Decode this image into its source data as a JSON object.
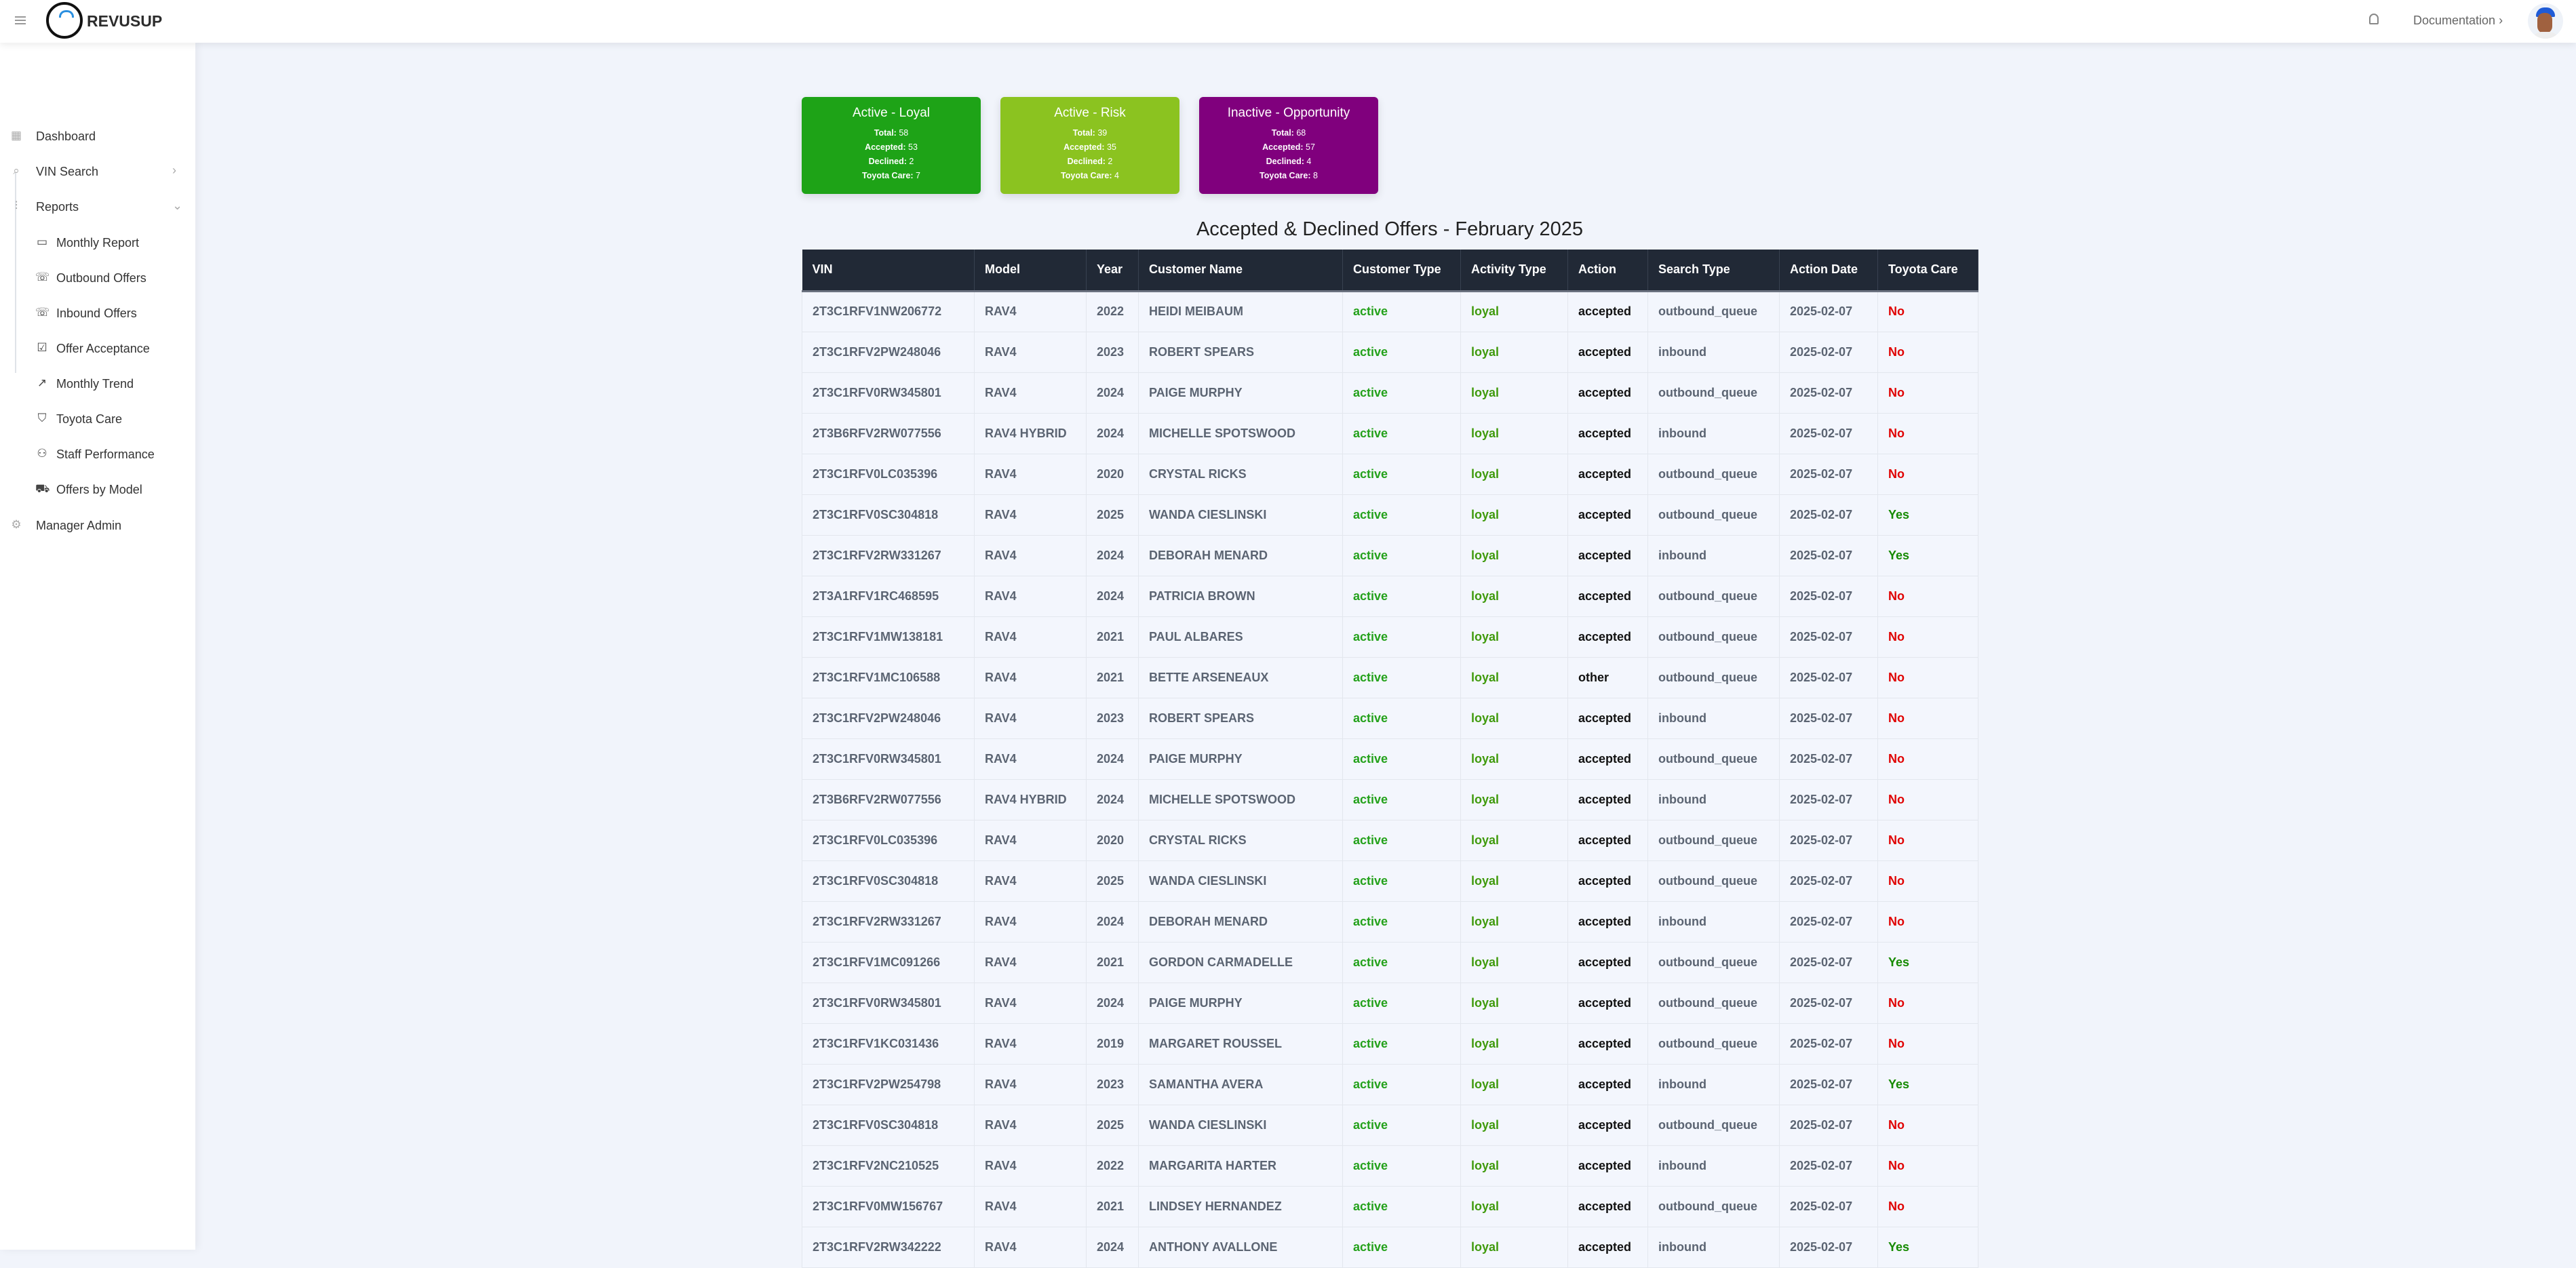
{
  "header": {
    "brand": "REVUSUP",
    "logo_text": "Revusup",
    "documentation": "Documentation ›"
  },
  "sidebar": {
    "items": [
      {
        "label": "Dashboard",
        "icon": "grid-icon"
      },
      {
        "label": "VIN Search",
        "icon": "search-icon"
      },
      {
        "label": "Reports",
        "icon": "bar-chart-icon"
      },
      {
        "label": "Monthly Report",
        "icon": "calendar-icon"
      },
      {
        "label": "Outbound Offers",
        "icon": "phone-outgoing-icon"
      },
      {
        "label": "Inbound Offers",
        "icon": "phone-incoming-icon"
      },
      {
        "label": "Offer Acceptance",
        "icon": "checkbox-icon"
      },
      {
        "label": "Monthly Trend",
        "icon": "trend-icon"
      },
      {
        "label": "Toyota Care",
        "icon": "shield-icon"
      },
      {
        "label": "Staff Performance",
        "icon": "users-icon"
      },
      {
        "label": "Offers by Model",
        "icon": "truck-icon"
      },
      {
        "label": "Manager Admin",
        "icon": "gear-icon"
      }
    ]
  },
  "cards": [
    {
      "title": "Active - Loyal",
      "color": "#1ea317",
      "total": "58",
      "accepted": "53",
      "declined": "2",
      "toyota_care": "7"
    },
    {
      "title": "Active - Risk",
      "color": "#8bc320",
      "total": "39",
      "accepted": "35",
      "declined": "2",
      "toyota_care": "4"
    },
    {
      "title": "Inactive - Opportunity",
      "color": "#80007d",
      "total": "68",
      "accepted": "57",
      "declined": "4",
      "toyota_care": "8"
    }
  ],
  "card_labels": {
    "total": "Total:",
    "accepted": "Accepted:",
    "declined": "Declined:",
    "toyota_care": "Toyota Care:"
  },
  "table": {
    "title": "Accepted & Declined Offers - February 2025",
    "columns": [
      "VIN",
      "Model",
      "Year",
      "Customer Name",
      "Customer Type",
      "Activity Type",
      "Action",
      "Search Type",
      "Action Date",
      "Toyota Care"
    ],
    "rows": [
      [
        "2T3C1RFV1NW206772",
        "RAV4",
        "2022",
        "HEIDI MEIBAUM",
        "active",
        "loyal",
        "accepted",
        "outbound_queue",
        "2025-02-07",
        "No"
      ],
      [
        "2T3C1RFV2PW248046",
        "RAV4",
        "2023",
        "ROBERT SPEARS",
        "active",
        "loyal",
        "accepted",
        "inbound",
        "2025-02-07",
        "No"
      ],
      [
        "2T3C1RFV0RW345801",
        "RAV4",
        "2024",
        "PAIGE MURPHY",
        "active",
        "loyal",
        "accepted",
        "outbound_queue",
        "2025-02-07",
        "No"
      ],
      [
        "2T3B6RFV2RW077556",
        "RAV4 HYBRID",
        "2024",
        "MICHELLE SPOTSWOOD",
        "active",
        "loyal",
        "accepted",
        "inbound",
        "2025-02-07",
        "No"
      ],
      [
        "2T3C1RFV0LC035396",
        "RAV4",
        "2020",
        "CRYSTAL RICKS",
        "active",
        "loyal",
        "accepted",
        "outbound_queue",
        "2025-02-07",
        "No"
      ],
      [
        "2T3C1RFV0SC304818",
        "RAV4",
        "2025",
        "WANDA CIESLINSKI",
        "active",
        "loyal",
        "accepted",
        "outbound_queue",
        "2025-02-07",
        "Yes"
      ],
      [
        "2T3C1RFV2RW331267",
        "RAV4",
        "2024",
        "DEBORAH MENARD",
        "active",
        "loyal",
        "accepted",
        "inbound",
        "2025-02-07",
        "Yes"
      ],
      [
        "2T3A1RFV1RC468595",
        "RAV4",
        "2024",
        "PATRICIA BROWN",
        "active",
        "loyal",
        "accepted",
        "outbound_queue",
        "2025-02-07",
        "No"
      ],
      [
        "2T3C1RFV1MW138181",
        "RAV4",
        "2021",
        "PAUL ALBARES",
        "active",
        "loyal",
        "accepted",
        "outbound_queue",
        "2025-02-07",
        "No"
      ],
      [
        "2T3C1RFV1MC106588",
        "RAV4",
        "2021",
        "BETTE ARSENEAUX",
        "active",
        "loyal",
        "other",
        "outbound_queue",
        "2025-02-07",
        "No"
      ],
      [
        "2T3C1RFV2PW248046",
        "RAV4",
        "2023",
        "ROBERT SPEARS",
        "active",
        "loyal",
        "accepted",
        "inbound",
        "2025-02-07",
        "No"
      ],
      [
        "2T3C1RFV0RW345801",
        "RAV4",
        "2024",
        "PAIGE MURPHY",
        "active",
        "loyal",
        "accepted",
        "outbound_queue",
        "2025-02-07",
        "No"
      ],
      [
        "2T3B6RFV2RW077556",
        "RAV4 HYBRID",
        "2024",
        "MICHELLE SPOTSWOOD",
        "active",
        "loyal",
        "accepted",
        "inbound",
        "2025-02-07",
        "No"
      ],
      [
        "2T3C1RFV0LC035396",
        "RAV4",
        "2020",
        "CRYSTAL RICKS",
        "active",
        "loyal",
        "accepted",
        "outbound_queue",
        "2025-02-07",
        "No"
      ],
      [
        "2T3C1RFV0SC304818",
        "RAV4",
        "2025",
        "WANDA CIESLINSKI",
        "active",
        "loyal",
        "accepted",
        "outbound_queue",
        "2025-02-07",
        "No"
      ],
      [
        "2T3C1RFV2RW331267",
        "RAV4",
        "2024",
        "DEBORAH MENARD",
        "active",
        "loyal",
        "accepted",
        "inbound",
        "2025-02-07",
        "No"
      ],
      [
        "2T3C1RFV1MC091266",
        "RAV4",
        "2021",
        "GORDON CARMADELLE",
        "active",
        "loyal",
        "accepted",
        "outbound_queue",
        "2025-02-07",
        "Yes"
      ],
      [
        "2T3C1RFV0RW345801",
        "RAV4",
        "2024",
        "PAIGE MURPHY",
        "active",
        "loyal",
        "accepted",
        "outbound_queue",
        "2025-02-07",
        "No"
      ],
      [
        "2T3C1RFV1KC031436",
        "RAV4",
        "2019",
        "MARGARET ROUSSEL",
        "active",
        "loyal",
        "accepted",
        "outbound_queue",
        "2025-02-07",
        "No"
      ],
      [
        "2T3C1RFV2PW254798",
        "RAV4",
        "2023",
        "SAMANTHA AVERA",
        "active",
        "loyal",
        "accepted",
        "inbound",
        "2025-02-07",
        "Yes"
      ],
      [
        "2T3C1RFV0SC304818",
        "RAV4",
        "2025",
        "WANDA CIESLINSKI",
        "active",
        "loyal",
        "accepted",
        "outbound_queue",
        "2025-02-07",
        "No"
      ],
      [
        "2T3C1RFV2NC210525",
        "RAV4",
        "2022",
        "MARGARITA HARTER",
        "active",
        "loyal",
        "accepted",
        "inbound",
        "2025-02-07",
        "No"
      ],
      [
        "2T3C1RFV0MW156767",
        "RAV4",
        "2021",
        "LINDSEY HERNANDEZ",
        "active",
        "loyal",
        "accepted",
        "outbound_queue",
        "2025-02-07",
        "No"
      ],
      [
        "2T3C1RFV2RW342222",
        "RAV4",
        "2024",
        "ANTHONY AVALLONE",
        "active",
        "loyal",
        "accepted",
        "inbound",
        "2025-02-07",
        "Yes"
      ]
    ]
  }
}
